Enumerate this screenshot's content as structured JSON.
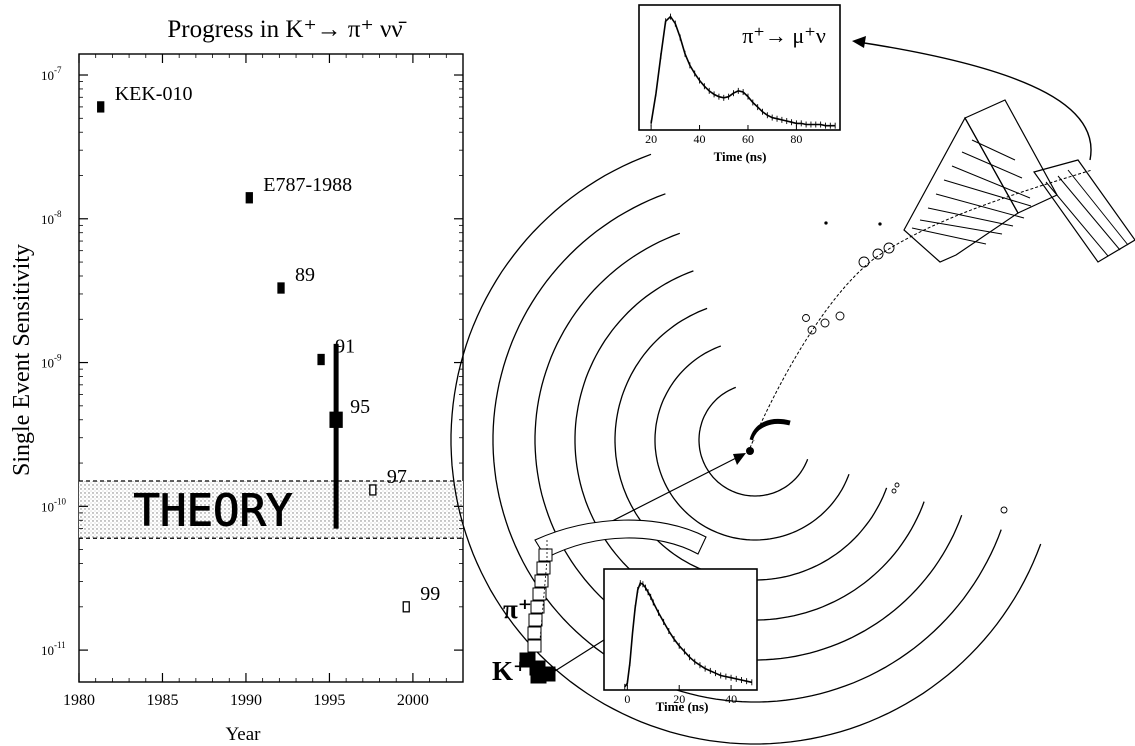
{
  "chart_data": [
    {
      "type": "scatter",
      "title": "Progress in K⁺→ π⁺ νν̄",
      "xlabel": "Year",
      "ylabel": "Single Event Sensitivity",
      "xlim": [
        1980,
        2003
      ],
      "ylim": [
        6e-12,
        1.4e-07
      ],
      "yscale": "log",
      "x_ticks": [
        "1980",
        "1985",
        "1990",
        "1995",
        "2000"
      ],
      "y_ticks": [
        {
          "value": 1e-11,
          "mant": "10",
          "exp": "-11"
        },
        {
          "value": 1e-10,
          "mant": "10",
          "exp": "-10"
        },
        {
          "value": 1e-09,
          "mant": "10",
          "exp": "-9"
        },
        {
          "value": 1e-08,
          "mant": "10",
          "exp": "-8"
        },
        {
          "value": 1e-07,
          "mant": "10",
          "exp": "-7"
        }
      ],
      "theory_band": {
        "label": "THEORY",
        "low": 6e-11,
        "high": 1.5e-10
      },
      "points": [
        {
          "x": 1981.3,
          "y": 6e-08,
          "label": "KEK-010",
          "filled": true,
          "size": "small"
        },
        {
          "x": 1990.2,
          "y": 1.4e-08,
          "label": "E787-1988",
          "filled": true,
          "size": "small"
        },
        {
          "x": 1992.1,
          "y": 3.3e-09,
          "label": "89",
          "filled": true,
          "size": "small"
        },
        {
          "x": 1994.5,
          "y": 1.05e-09,
          "label": "91",
          "filled": true,
          "size": "small"
        },
        {
          "x": 1995.4,
          "y": 4e-10,
          "label": "95",
          "filled": true,
          "size": "large",
          "error_low": 7e-11,
          "error_high": 1.35e-09
        },
        {
          "x": 1997.6,
          "y": 1.3e-10,
          "label": "97",
          "filled": false,
          "size": "small"
        },
        {
          "x": 1999.6,
          "y": 2e-11,
          "label": "99",
          "filled": false,
          "size": "small"
        }
      ]
    },
    {
      "type": "line",
      "title": "π⁺→ μ⁺ν",
      "xlabel": "Time (ns)",
      "ylabel": "",
      "xlim": [
        15,
        98
      ],
      "ylim": [
        0,
        100
      ],
      "x_ticks": [
        20,
        40,
        60,
        80
      ],
      "x": [
        20,
        22,
        24,
        26,
        28,
        30,
        32,
        34,
        36,
        38,
        40,
        42,
        44,
        46,
        48,
        50,
        52,
        54,
        56,
        58,
        60,
        62,
        64,
        66,
        68,
        70,
        72,
        74,
        76,
        78,
        80,
        82,
        84,
        86,
        88,
        90,
        92,
        94,
        96
      ],
      "y": [
        4,
        30,
        62,
        92,
        96,
        90,
        78,
        64,
        54,
        47,
        41,
        36,
        32,
        29,
        27,
        26,
        27,
        30,
        32,
        31,
        27,
        22,
        18,
        14,
        11,
        9,
        8,
        7,
        6,
        5,
        4,
        4,
        3,
        3,
        3,
        3,
        2,
        2,
        2
      ]
    },
    {
      "type": "line",
      "title": "",
      "xlabel": "Time (ns)",
      "ylabel": "",
      "xlim": [
        -9,
        50
      ],
      "ylim": [
        0,
        100
      ],
      "x_ticks": [
        0,
        20,
        40
      ],
      "x": [
        -1,
        0,
        1,
        2,
        3,
        4,
        5,
        6,
        7,
        8,
        9,
        10,
        12,
        14,
        16,
        18,
        20,
        22,
        24,
        26,
        28,
        30,
        32,
        34,
        36,
        38,
        40,
        42,
        44,
        46,
        48
      ],
      "y": [
        1,
        4,
        22,
        48,
        70,
        86,
        92,
        91,
        88,
        84,
        80,
        75,
        66,
        58,
        50,
        43,
        37,
        32,
        27,
        23,
        20,
        17,
        15,
        13,
        11,
        10,
        9,
        8,
        7,
        6,
        5
      ]
    }
  ],
  "diagram": {
    "pion_label": "π⁺",
    "kaon_label": "K⁺"
  }
}
